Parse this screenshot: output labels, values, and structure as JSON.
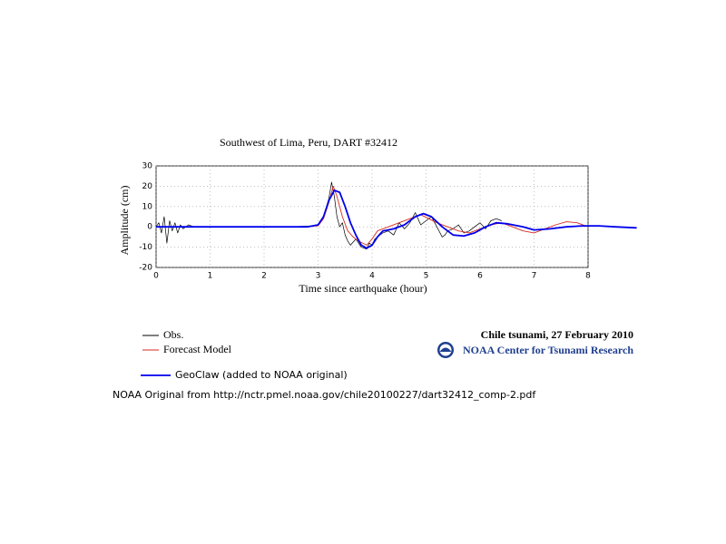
{
  "chart_data": {
    "type": "line",
    "title": "Southwest of Lima, Peru, DART #32412",
    "xlabel": "Time since earthquake (hour)",
    "ylabel": "Amplitude (cm)",
    "xlim": [
      0,
      8
    ],
    "xticks": [
      0,
      1,
      2,
      3,
      4,
      5,
      6,
      7,
      8
    ],
    "ylim": [
      -20,
      30
    ],
    "yticks": [
      -20,
      -10,
      0,
      10,
      20,
      30
    ],
    "grid": true,
    "series": [
      {
        "name": "Obs.",
        "color": "#000000",
        "x": [
          0,
          0.05,
          0.1,
          0.15,
          0.2,
          0.25,
          0.3,
          0.35,
          0.4,
          0.45,
          0.5,
          0.6,
          0.7,
          0.8,
          1.0,
          1.5,
          2.0,
          2.5,
          2.9,
          3.0,
          3.1,
          3.2,
          3.25,
          3.3,
          3.35,
          3.4,
          3.45,
          3.5,
          3.55,
          3.6,
          3.7,
          3.8,
          3.9,
          3.95,
          4.0,
          4.05,
          4.1,
          4.2,
          4.3,
          4.4,
          4.5,
          4.6,
          4.7,
          4.8,
          4.85,
          4.9,
          5.0,
          5.1,
          5.2,
          5.3,
          5.35,
          5.4,
          5.5,
          5.6,
          5.7,
          5.8,
          5.9,
          6.0,
          6.1,
          6.2,
          6.3,
          6.4
        ],
        "values": [
          0,
          2,
          -3,
          5,
          -8,
          3,
          -2,
          2,
          -3,
          1,
          -1,
          1,
          0,
          0,
          0,
          0,
          0,
          0,
          0.5,
          1,
          5,
          14,
          22,
          15,
          5,
          0,
          2,
          -4,
          -7,
          -9,
          -6,
          -10,
          -11,
          -8,
          -9,
          -6,
          -5,
          -3,
          -2,
          -4,
          2,
          -1,
          2,
          7,
          4,
          1,
          3,
          5,
          0,
          -5,
          -4,
          -2,
          -1,
          1,
          -3,
          -2,
          0,
          2,
          -1,
          3,
          4,
          3
        ]
      },
      {
        "name": "Forecast Model",
        "color": "#d62a1e",
        "x": [
          0,
          2.8,
          3.0,
          3.1,
          3.2,
          3.28,
          3.35,
          3.45,
          3.55,
          3.65,
          3.75,
          3.9,
          4.0,
          4.1,
          4.3,
          4.5,
          4.7,
          4.9,
          5.05,
          5.2,
          5.4,
          5.6,
          5.8,
          6.0,
          6.2,
          6.4,
          6.6,
          6.8,
          7.0,
          7.2,
          7.4,
          7.6,
          7.8,
          8.0
        ],
        "values": [
          0,
          0,
          0.5,
          4,
          12,
          20,
          15,
          5,
          -2,
          -5,
          -7,
          -9,
          -6,
          -2,
          0,
          2,
          4,
          6,
          4,
          2,
          0,
          -2,
          -3,
          -1,
          1,
          2,
          0,
          -2,
          -3,
          -1,
          1,
          2.5,
          2,
          0
        ]
      },
      {
        "name": "GeoClaw (added to NOAA original)",
        "color": "#0000ee",
        "x": [
          0,
          0.5,
          1,
          2,
          2.8,
          3.0,
          3.1,
          3.2,
          3.3,
          3.4,
          3.5,
          3.6,
          3.7,
          3.8,
          3.9,
          4.0,
          4.1,
          4.2,
          4.4,
          4.6,
          4.8,
          4.95,
          5.1,
          5.3,
          5.5,
          5.7,
          5.9,
          6.1,
          6.3,
          6.5,
          6.8,
          7.0,
          7.3,
          7.6,
          7.9,
          8.2,
          8.5,
          8.9
        ],
        "values": [
          0,
          0,
          0,
          0,
          0,
          1,
          5,
          13,
          18,
          17,
          10,
          2,
          -4,
          -9,
          -10.5,
          -9,
          -5,
          -2,
          -1,
          1,
          5,
          6.5,
          5,
          0,
          -4,
          -4.5,
          -3,
          0,
          2,
          1.5,
          0,
          -1.5,
          -1,
          0,
          0.5,
          0.5,
          0,
          -0.5
        ]
      }
    ],
    "annotations": [
      "Chile tsunami, 27 February 2010",
      "NOAA Center for Tsunami Research",
      "NOAA Original from http://nctr.pmel.noaa.gov/chile20100227/dart32412_comp-2.pdf"
    ]
  }
}
